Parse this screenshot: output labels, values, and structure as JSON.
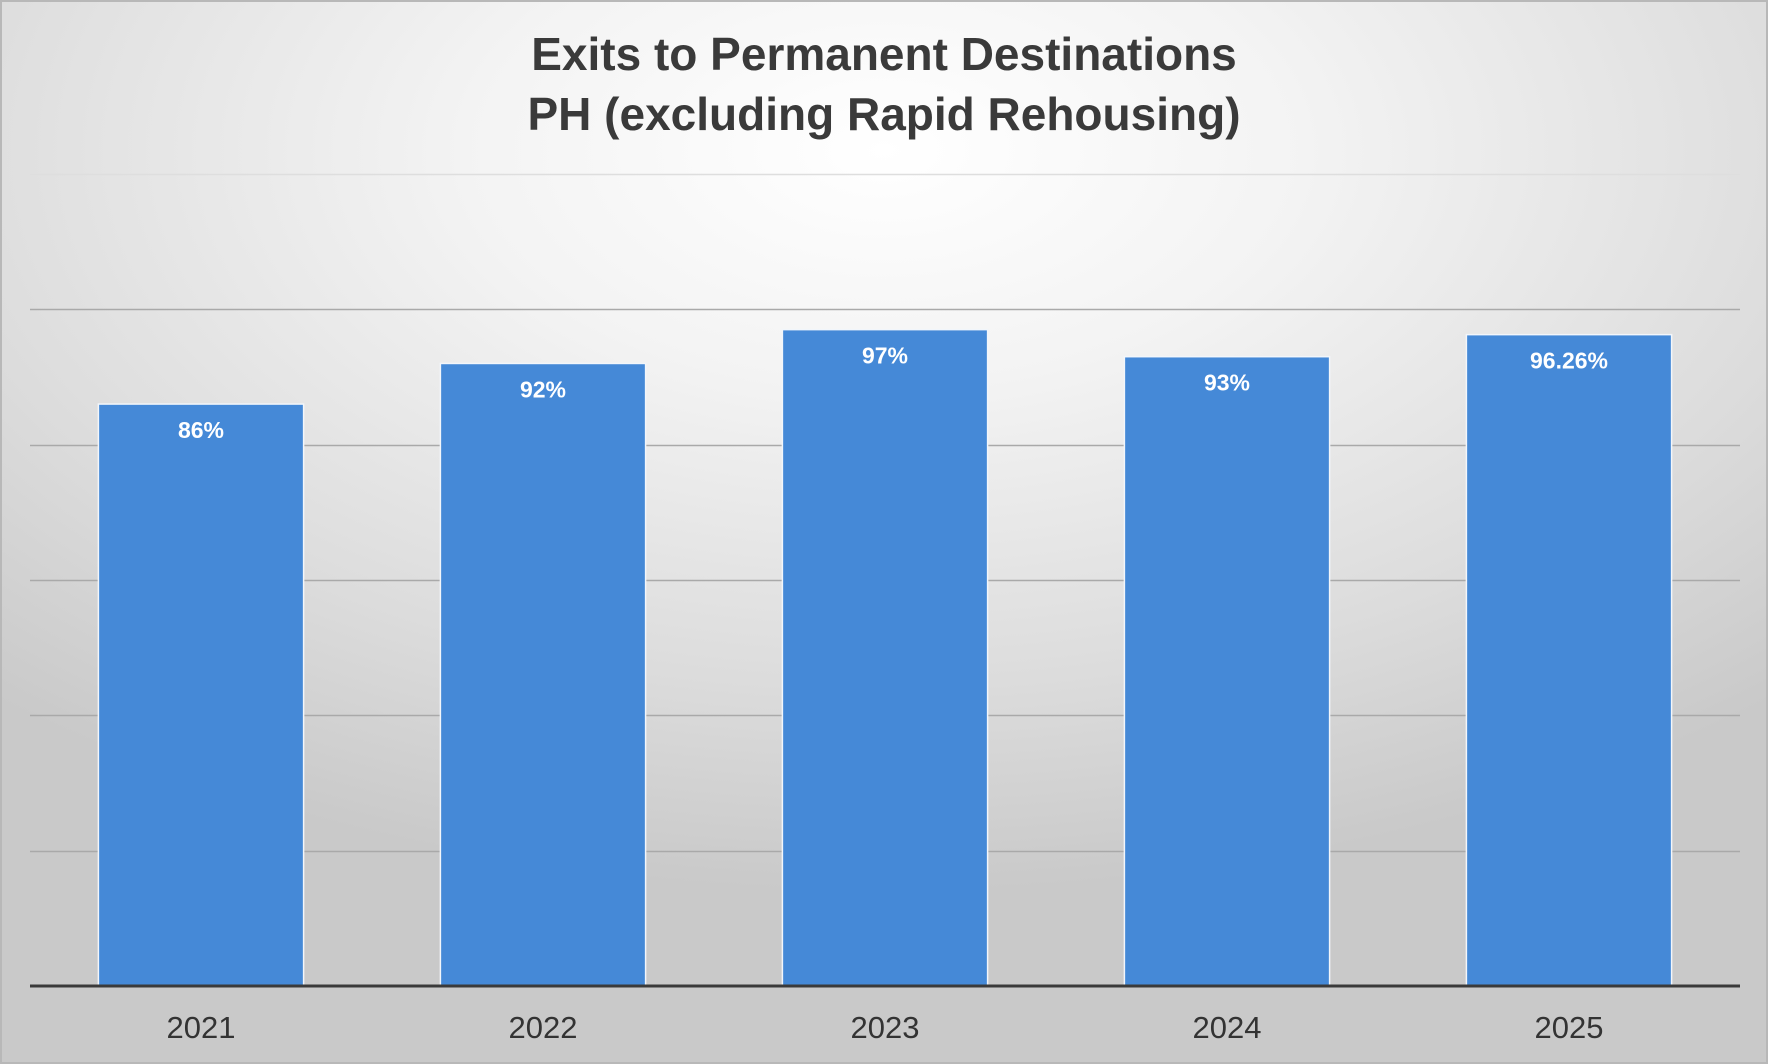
{
  "chart_data": {
    "type": "bar",
    "title": "Exits to Permanent Destinations",
    "subtitle": "PH (excluding Rapid Rehousing)",
    "categories": [
      "2021",
      "2022",
      "2023",
      "2024",
      "2025"
    ],
    "values": [
      86,
      92,
      97,
      93,
      96.26
    ],
    "data_labels": [
      "86%",
      "92%",
      "97%",
      "93%",
      "96.26%"
    ],
    "xlabel": "",
    "ylabel": "",
    "ylim": [
      0,
      120
    ],
    "ytick_step": 20,
    "grid": true,
    "legend": false,
    "bar_color": "#4589d7",
    "gridline_color": "#a9a9a9",
    "axis_color": "#3a3a3a"
  }
}
